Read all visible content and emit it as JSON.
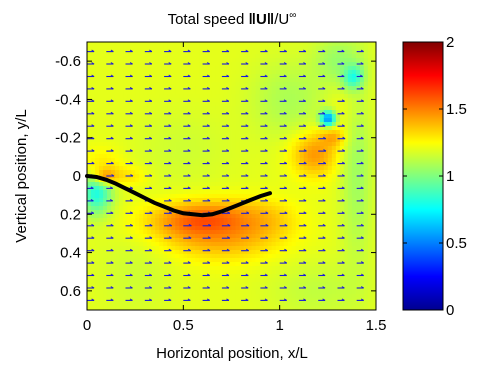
{
  "chart_data": {
    "type": "heatmap",
    "title": "Total speed ‖U‖/U∞",
    "title_parts": {
      "prefix": "Total speed ",
      "bold": "U",
      "suffix": "/U",
      "sup": "∞"
    },
    "xlabel": "Horizontal position, x/L",
    "ylabel": "Vertical position, y/L",
    "xlim": [
      0,
      1.5
    ],
    "ylim": [
      -0.7,
      0.7
    ],
    "y_axis_reversed": true,
    "x_ticks": [
      0,
      0.5,
      1,
      1.5
    ],
    "x_tick_labels": [
      "0",
      "0.5",
      "1",
      "1.5"
    ],
    "y_ticks": [
      -0.6,
      -0.4,
      -0.2,
      0,
      0.2,
      0.4,
      0.6
    ],
    "y_tick_labels": [
      "-0.6",
      "-0.4",
      "-0.2",
      "0",
      "0.2",
      "0.4",
      "0.6"
    ],
    "colorbar": {
      "range": [
        0,
        2
      ],
      "ticks": [
        0,
        0.5,
        1,
        1.5,
        2
      ],
      "tick_labels": [
        "0",
        "0.5",
        "1",
        "1.5",
        "2"
      ],
      "colormap": "jet"
    },
    "background_speed": 1.2,
    "vector_color": "#1a1ad8",
    "body_color": "#000000",
    "body_curve": [
      [
        0.0,
        0.0
      ],
      [
        0.05,
        0.005
      ],
      [
        0.1,
        0.02
      ],
      [
        0.15,
        0.04
      ],
      [
        0.2,
        0.065
      ],
      [
        0.25,
        0.09
      ],
      [
        0.3,
        0.115
      ],
      [
        0.35,
        0.14
      ],
      [
        0.4,
        0.16
      ],
      [
        0.45,
        0.18
      ],
      [
        0.5,
        0.195
      ],
      [
        0.55,
        0.2
      ],
      [
        0.6,
        0.205
      ],
      [
        0.65,
        0.2
      ],
      [
        0.7,
        0.185
      ],
      [
        0.75,
        0.165
      ],
      [
        0.8,
        0.145
      ],
      [
        0.85,
        0.125
      ],
      [
        0.9,
        0.105
      ],
      [
        0.95,
        0.09
      ]
    ],
    "speed_features": [
      {
        "x": 0.05,
        "y": 0.08,
        "speed": 0.55,
        "rx": 0.08,
        "ry": 0.12,
        "a": 0.65
      },
      {
        "x": 0.07,
        "y": -0.05,
        "speed": 1.6,
        "rx": 0.11,
        "ry": 0.09,
        "a": 0.35
      },
      {
        "x": 0.1,
        "y": 0.0,
        "speed": 1.7,
        "rx": 0.06,
        "ry": 0.04,
        "a": 0.5
      },
      {
        "x": 0.22,
        "y": 0.0,
        "speed": 1.5,
        "rx": 0.1,
        "ry": 0.05,
        "a": 0.35
      },
      {
        "x": 0.62,
        "y": 0.24,
        "speed": 1.75,
        "rx": 0.28,
        "ry": 0.1,
        "a": 0.8
      },
      {
        "x": 0.7,
        "y": 0.33,
        "speed": 1.55,
        "rx": 0.3,
        "ry": 0.12,
        "a": 0.5
      },
      {
        "x": 0.9,
        "y": 0.22,
        "speed": 1.5,
        "rx": 0.18,
        "ry": 0.1,
        "a": 0.4
      },
      {
        "x": 0.5,
        "y": -0.15,
        "speed": 1.05,
        "rx": 0.25,
        "ry": 0.2,
        "a": 0.3
      },
      {
        "x": 1.18,
        "y": -0.12,
        "speed": 1.65,
        "rx": 0.12,
        "ry": 0.12,
        "a": 0.6
      },
      {
        "x": 1.28,
        "y": -0.2,
        "speed": 1.6,
        "rx": 0.07,
        "ry": 0.05,
        "a": 0.6
      },
      {
        "x": 1.35,
        "y": -0.32,
        "speed": 1.5,
        "rx": 0.1,
        "ry": 0.15,
        "a": 0.3
      },
      {
        "x": 1.25,
        "y": -0.3,
        "speed": 0.3,
        "rx": 0.04,
        "ry": 0.04,
        "a": 0.85
      },
      {
        "x": 1.38,
        "y": -0.52,
        "speed": 0.55,
        "rx": 0.05,
        "ry": 0.06,
        "a": 0.8
      },
      {
        "x": 1.3,
        "y": -0.6,
        "speed": 0.95,
        "rx": 0.12,
        "ry": 0.12,
        "a": 0.6
      },
      {
        "x": 1.05,
        "y": -0.4,
        "speed": 0.95,
        "rx": 0.2,
        "ry": 0.2,
        "a": 0.45
      },
      {
        "x": 1.4,
        "y": -0.05,
        "speed": 0.95,
        "rx": 0.08,
        "ry": 0.5,
        "a": 0.55
      },
      {
        "x": 1.2,
        "y": 0.6,
        "speed": 1.0,
        "rx": 0.25,
        "ry": 0.15,
        "a": 0.35
      },
      {
        "x": 0.25,
        "y": 0.5,
        "speed": 1.05,
        "rx": 0.2,
        "ry": 0.25,
        "a": 0.3
      }
    ]
  }
}
